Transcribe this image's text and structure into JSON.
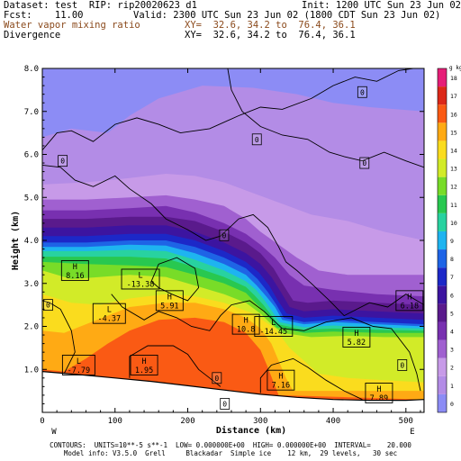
{
  "header": {
    "dataset": "Dataset: test  RIP: rip20020623 d1",
    "init": "Init: 1200 UTC Sun 23 Jun 02",
    "fcst": "Fcst:    11.00",
    "valid": "Valid: 2300 UTC Sun 23 Jun 02 (1800 CDT Sun 23 Jun 02)",
    "field1": "Water vapor mixing ratio",
    "field1_xy": "XY=  32.6, 34.2 to  76.4, 36.1",
    "field2": "Divergence",
    "field2_xy": "XY=  32.6, 34.2 to  76.4, 36.1"
  },
  "footer": {
    "contours": "CONTOURS:  UNITS=10**-5 s**-1  LOW= 0.000000E+00  HIGH= 0.000000E+00  INTERVAL=    20.000",
    "model_info": "Model info: V3.5.0  Grell     Blackadar  Simple ice    12 km,  29 levels,   30 sec"
  },
  "chart_data": {
    "type": "heatmap",
    "title": "Water vapor mixing ratio",
    "xlabel": "Distance (km)",
    "ylabel": "Height (km)",
    "xlim": [
      0,
      525
    ],
    "ylim": [
      0,
      8
    ],
    "xticks": [
      0,
      100,
      200,
      300,
      400,
      500
    ],
    "yticks": [
      1.0,
      2.0,
      3.0,
      4.0,
      5.0,
      6.0,
      7.0,
      8.0
    ],
    "x_end_labels": {
      "left": "W",
      "right": "E"
    },
    "colorbar": {
      "unit": "g kg-1",
      "labels": [
        "0",
        "1",
        "2",
        "3",
        "4",
        "5",
        "6",
        "7",
        "8",
        "9",
        "10",
        "11",
        "12",
        "13",
        "14",
        "15",
        "16",
        "17",
        "18"
      ],
      "colors": [
        "#8c8cf5",
        "#b38ce6",
        "#c79ae8",
        "#a060d0",
        "#7830b0",
        "#5a1a8c",
        "#3c14a0",
        "#1c28c8",
        "#1e64e6",
        "#1eb4f0",
        "#28d2a0",
        "#28c850",
        "#78dc28",
        "#d2eb28",
        "#fadc1e",
        "#ffaa14",
        "#fa5a14",
        "#dc2819",
        "#e61e78"
      ]
    },
    "contour_field": "Divergence (10**-5 s**-1), interval 20",
    "labels": [
      {
        "kind": "H",
        "value": "8.16",
        "x": 45,
        "y": 3.3
      },
      {
        "kind": "L",
        "value": "-13.38",
        "x": 135,
        "y": 3.1
      },
      {
        "kind": "H",
        "value": "5.91",
        "x": 175,
        "y": 2.6
      },
      {
        "kind": "L",
        "value": "-4.37",
        "x": 92,
        "y": 2.3
      },
      {
        "kind": "H",
        "value": "10.8",
        "x": 280,
        "y": 2.05
      },
      {
        "kind": "L",
        "value": "-14.45",
        "x": 318,
        "y": 2.0
      },
      {
        "kind": "H",
        "value": "5.82",
        "x": 432,
        "y": 1.75
      },
      {
        "kind": "H",
        "value": "6.18",
        "x": 505,
        "y": 2.6
      },
      {
        "kind": "L",
        "value": "-7.79",
        "x": 50,
        "y": 1.1
      },
      {
        "kind": "H",
        "value": "1.95",
        "x": 140,
        "y": 1.1
      },
      {
        "kind": "H",
        "value": "7.16",
        "x": 328,
        "y": 0.75
      },
      {
        "kind": "H",
        "value": "7.89",
        "x": 463,
        "y": 0.45
      }
    ],
    "zero_labels": [
      {
        "x": 440,
        "y": 7.45
      },
      {
        "x": 295,
        "y": 6.35
      },
      {
        "x": 28,
        "y": 5.85
      },
      {
        "x": 443,
        "y": 5.8
      },
      {
        "x": 250,
        "y": 4.12
      },
      {
        "x": 8,
        "y": 2.5
      },
      {
        "x": 240,
        "y": 0.8
      },
      {
        "x": 251,
        "y": 0.2
      },
      {
        "x": 495,
        "y": 1.1
      }
    ]
  }
}
